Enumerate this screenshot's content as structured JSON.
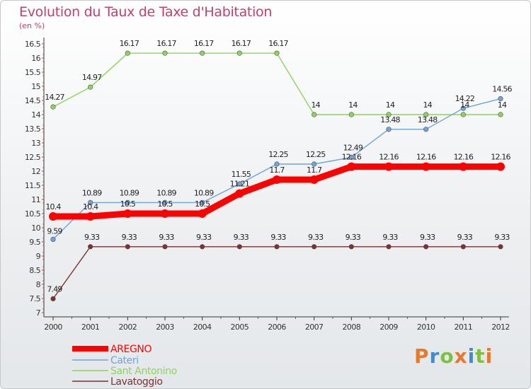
{
  "header": {
    "title": "Evolution du Taux de Taxe d'Habitation",
    "subtitle": "(en %)"
  },
  "logo": {
    "text": "Proxiti",
    "letter_colors": [
      "#e8792b",
      "#3a8fd6",
      "#7cc242",
      "#e8792b",
      "#3a8fd6",
      "#7cc242",
      "#e8792b"
    ]
  },
  "chart_data": {
    "type": "line",
    "x": [
      "2000",
      "2001",
      "2002",
      "2003",
      "2004",
      "2005",
      "2006",
      "2007",
      "2008",
      "2009",
      "2010",
      "2011",
      "2012"
    ],
    "ylim": [
      7,
      16.5
    ],
    "yticks": [
      "7",
      "7.5",
      "8",
      "8.5",
      "9",
      "9.5",
      "10",
      "10.5",
      "11",
      "11.5",
      "12",
      "12.5",
      "13",
      "13.5",
      "14",
      "14.5",
      "15",
      "15.5",
      "16",
      "16.5"
    ],
    "grid": false,
    "legend_position": "bottom-left",
    "series": [
      {
        "name": "AREGNO",
        "color": "#ff0000",
        "values": [
          10.4,
          10.4,
          10.5,
          10.5,
          10.5,
          11.21,
          11.7,
          11.7,
          12.16,
          12.16,
          12.16,
          12.16,
          12.16
        ],
        "labels": [
          "10.4",
          "10.4",
          "10.5",
          "10.5",
          "10.5",
          "11.21",
          "11.7",
          "11.7",
          "12.16",
          "12.16",
          "12.16",
          "12.16",
          "12.16"
        ]
      },
      {
        "name": "Cateri",
        "color": "#6fa3d9",
        "values": [
          9.59,
          10.89,
          10.89,
          10.89,
          10.89,
          11.55,
          12.25,
          12.25,
          12.49,
          13.48,
          13.48,
          14.22,
          14.56
        ],
        "labels": [
          "9.59",
          "10.89",
          "10.89",
          "10.89",
          "10.89",
          "11.55",
          "12.25",
          "12.25",
          "12.49",
          "13.48",
          "13.48",
          "14.22",
          "14.56"
        ]
      },
      {
        "name": "Sant Antonino",
        "color": "#8fd45a",
        "values": [
          14.27,
          14.97,
          16.17,
          16.17,
          16.17,
          16.17,
          16.17,
          14,
          14,
          14,
          14,
          14,
          14
        ],
        "labels": [
          "14.27",
          "14.97",
          "16.17",
          "16.17",
          "16.17",
          "16.17",
          "16.17",
          "14",
          "14",
          "14",
          "14",
          "14",
          "14"
        ]
      },
      {
        "name": "Lavatoggio",
        "color": "#7a3232",
        "values": [
          7.49,
          9.33,
          9.33,
          9.33,
          9.33,
          9.33,
          9.33,
          9.33,
          9.33,
          9.33,
          9.33,
          9.33,
          9.33
        ],
        "labels": [
          "7.49",
          "9.33",
          "9.33",
          "9.33",
          "9.33",
          "9.33",
          "9.33",
          "9.33",
          "9.33",
          "9.33",
          "9.33",
          "9.33",
          "9.33"
        ]
      }
    ]
  }
}
